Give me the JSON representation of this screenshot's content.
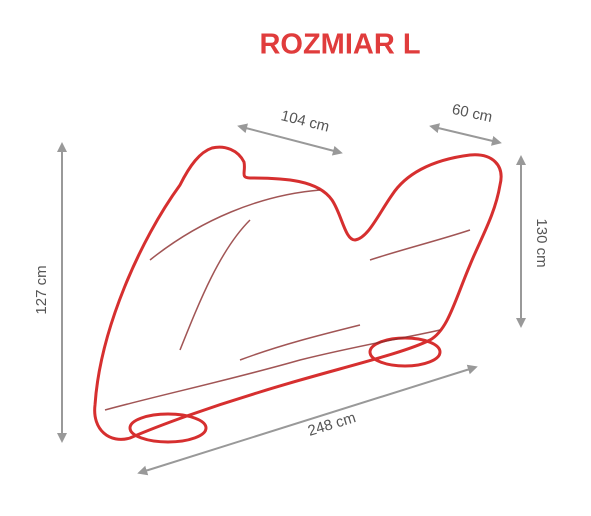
{
  "title": "ROZMIAR L",
  "dimensions": {
    "top_front": "104 cm",
    "top_rear": "60 cm",
    "height_front": "127 cm",
    "height_rear": "130 cm",
    "length": "248 cm"
  }
}
